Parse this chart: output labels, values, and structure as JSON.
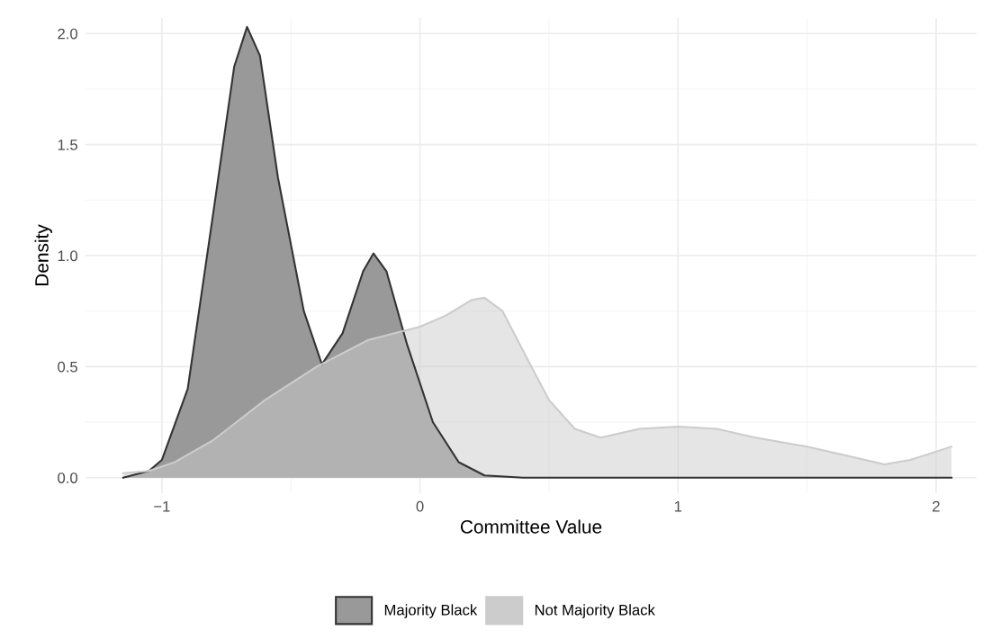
{
  "chart_data": {
    "type": "area",
    "xlabel": "Committee Value",
    "ylabel": "Density",
    "xlim": [
      -1.296,
      2.157
    ],
    "ylim": [
      -0.07,
      2.07
    ],
    "xticks": [
      {
        "value": -1,
        "label": "−1"
      },
      0,
      1,
      2
    ],
    "yticks": [
      {
        "value": 0,
        "label": "0.0"
      },
      0.5,
      {
        "value": 1,
        "label": "1.0"
      },
      1.5,
      {
        "value": 2,
        "label": "2.0"
      }
    ],
    "grid": true,
    "legend": "bottom",
    "series": [
      {
        "name": "Majority Black",
        "color": "#999999",
        "x": [
          -1.15,
          -1.05,
          -1.0,
          -0.9,
          -0.8,
          -0.72,
          -0.67,
          -0.62,
          -0.55,
          -0.45,
          -0.38,
          -0.3,
          -0.22,
          -0.18,
          -0.13,
          -0.05,
          0.05,
          0.15,
          0.25,
          0.4,
          2.06
        ],
        "values": [
          0.0,
          0.03,
          0.08,
          0.4,
          1.2,
          1.85,
          2.03,
          1.9,
          1.35,
          0.75,
          0.51,
          0.65,
          0.93,
          1.01,
          0.93,
          0.6,
          0.25,
          0.07,
          0.01,
          0.0,
          0.0
        ]
      },
      {
        "name": "Not Majority Black",
        "color": "#cccccc",
        "x": [
          -1.15,
          -1.05,
          -0.95,
          -0.8,
          -0.6,
          -0.4,
          -0.2,
          0,
          0.1,
          0.2,
          0.25,
          0.32,
          0.4,
          0.5,
          0.6,
          0.7,
          0.85,
          1.0,
          1.15,
          1.3,
          1.5,
          1.65,
          1.8,
          1.9,
          2.06
        ],
        "values": [
          0.02,
          0.03,
          0.07,
          0.17,
          0.35,
          0.5,
          0.62,
          0.68,
          0.73,
          0.8,
          0.81,
          0.75,
          0.57,
          0.35,
          0.22,
          0.18,
          0.22,
          0.23,
          0.22,
          0.18,
          0.14,
          0.1,
          0.06,
          0.08,
          0.14
        ]
      }
    ]
  }
}
